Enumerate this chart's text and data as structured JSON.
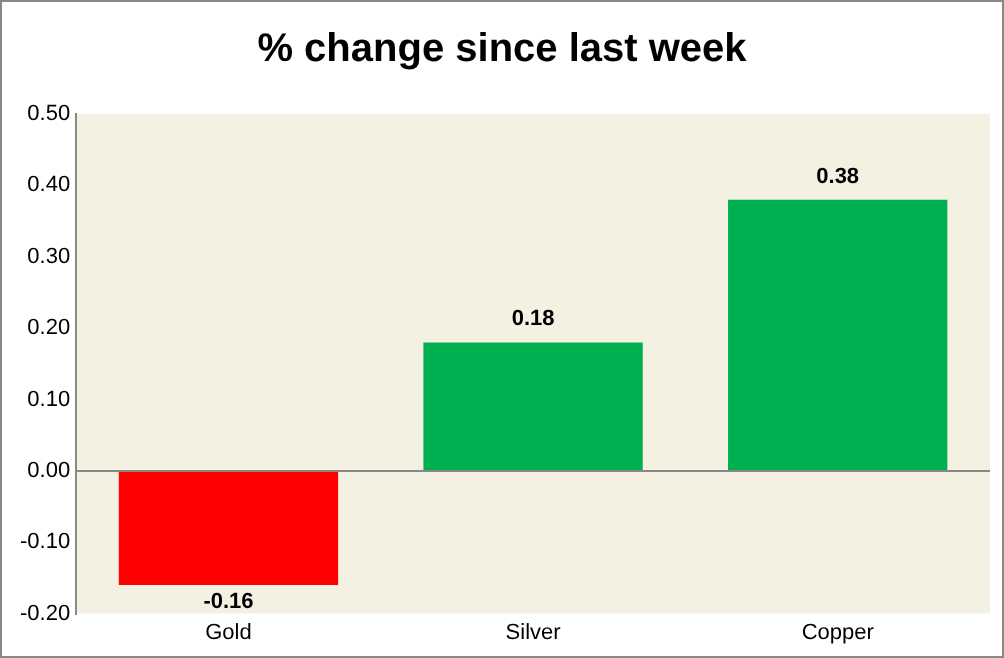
{
  "chart_data": {
    "type": "bar",
    "title": "% change since last week",
    "categories": [
      "Gold",
      "Silver",
      "Copper"
    ],
    "values": [
      -0.16,
      0.18,
      0.38
    ],
    "colors": [
      "#ff0000",
      "#00b050",
      "#00b050"
    ],
    "ylim": [
      -0.2,
      0.5
    ],
    "yticks": [
      {
        "value": -0.2,
        "label": "-0.20"
      },
      {
        "value": -0.1,
        "label": "-0.10"
      },
      {
        "value": 0,
        "label": "0.00"
      },
      {
        "value": 0.1,
        "label": "0.10"
      },
      {
        "value": 0.2,
        "label": "0.20"
      },
      {
        "value": 0.3,
        "label": "0.30"
      },
      {
        "value": 0.4,
        "label": "0.40"
      },
      {
        "value": 0.5,
        "label": "0.50"
      }
    ],
    "data_labels": true,
    "legend": false
  }
}
